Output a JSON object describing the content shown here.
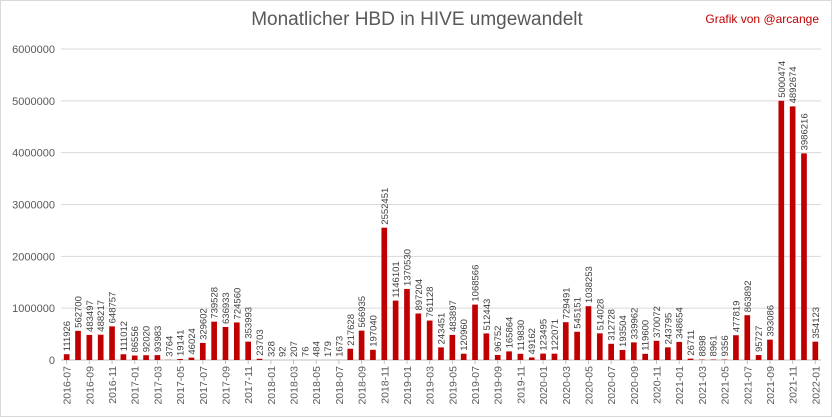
{
  "chart_data": {
    "type": "bar",
    "title": "Monatlicher HBD in HIVE umgewandelt",
    "credit": "Grafik von @arcange",
    "ylim": [
      0,
      6000000
    ],
    "yticks": [
      "0",
      "1000000",
      "2000000",
      "3000000",
      "4000000",
      "5000000",
      "6000000"
    ],
    "grid": true,
    "bar_color": "#c00000",
    "months": [
      "2016-07",
      "2016-08",
      "2016-09",
      "2016-10",
      "2016-11",
      "2016-12",
      "2017-01",
      "2017-02",
      "2017-03",
      "2017-04",
      "2017-05",
      "2017-06",
      "2017-07",
      "2017-08",
      "2017-09",
      "2017-10",
      "2017-11",
      "2017-12",
      "2018-01",
      "2018-02",
      "2018-03",
      "2018-04",
      "2018-05",
      "2018-06",
      "2018-07",
      "2018-08",
      "2018-09",
      "2018-10",
      "2018-11",
      "2018-12",
      "2019-01",
      "2019-02",
      "2019-03",
      "2019-04",
      "2019-05",
      "2019-06",
      "2019-07",
      "2019-08",
      "2019-09",
      "2019-10",
      "2019-11",
      "2019-12",
      "2020-01",
      "2020-02",
      "2020-03",
      "2020-04",
      "2020-05",
      "2020-06",
      "2020-07",
      "2020-08",
      "2020-09",
      "2020-10",
      "2020-11",
      "2020-12",
      "2021-01",
      "2021-02",
      "2021-03",
      "2021-04",
      "2021-05",
      "2021-06",
      "2021-07",
      "2021-08",
      "2021-09",
      "2021-10",
      "2021-11",
      "2021-12",
      "2022-01"
    ],
    "xtick_labels": [
      "2016-07",
      "2016-09",
      "2016-11",
      "2017-01",
      "2017-03",
      "2017-05",
      "2017-07",
      "2017-09",
      "2017-11",
      "2018-01",
      "2018-03",
      "2018-05",
      "2018-07",
      "2018-09",
      "2018-11",
      "2019-01",
      "2019-03",
      "2019-05",
      "2019-07",
      "2019-09",
      "2019-11",
      "2020-01",
      "2020-03",
      "2020-05",
      "2020-07",
      "2020-09",
      "2020-11",
      "2021-01",
      "2021-03",
      "2021-05",
      "2021-07",
      "2021-09",
      "2021-11",
      "2022-01"
    ],
    "values": [
      111926,
      562700,
      483497,
      488217,
      648757,
      111012,
      86556,
      92020,
      93983,
      3764,
      19141,
      46024,
      329602,
      739528,
      636933,
      724560,
      353993,
      23703,
      328,
      92,
      207,
      76,
      484,
      179,
      1673,
      217628,
      566935,
      197040,
      2552451,
      1146101,
      1370530,
      897204,
      761128,
      243451,
      483897,
      120960,
      1068566,
      512443,
      96752,
      165864,
      119830,
      49162,
      123495,
      122071,
      729491,
      545151,
      1038253,
      514028,
      312728,
      193504,
      339962,
      119600,
      370072,
      243795,
      348654,
      26711,
      8898,
      8961,
      9356,
      477819,
      863892,
      95727,
      393086,
      5000474,
      4892674,
      3986216,
      354123
    ],
    "value_labels": [
      "111926",
      "562700",
      "483497",
      "488217",
      "648757",
      "111012",
      "86556",
      "92020",
      "93983",
      "3764",
      "19141",
      "46024",
      "329602",
      "739528",
      "636933",
      "724560",
      "353993",
      "23703",
      "328",
      "92",
      "207",
      "76",
      "484",
      "179",
      "1673",
      "217628",
      "566935",
      "197040",
      "2552451",
      "1146101",
      "1370530",
      "897204",
      "761128",
      "243451",
      "483897",
      "120960",
      "1068566",
      "512443",
      "96752",
      "165864",
      "119830",
      "49162",
      "123495",
      "122071",
      "729491",
      "545151",
      "1038253",
      "514028",
      "312728",
      "193504",
      "339962",
      "119600",
      "370072",
      "243795",
      "348654",
      "26711",
      "8898",
      "8961",
      "9356",
      "477819",
      "863892",
      "95727",
      "393086",
      "5000474",
      "4892674",
      "3986216",
      "354123"
    ]
  }
}
